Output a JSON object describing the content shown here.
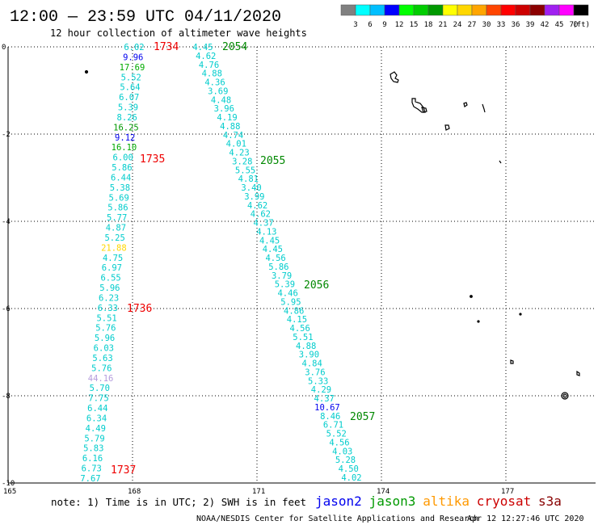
{
  "header": {
    "title": "12:00 — 23:59 UTC 04/11/2020",
    "subtitle": "12 hour collection of altimeter wave heights"
  },
  "colorbar": {
    "colors": [
      "#808080",
      "#00ffff",
      "#00bfff",
      "#0000ff",
      "#00ff00",
      "#00cd00",
      "#009900",
      "#ffff00",
      "#ffd700",
      "#ffa500",
      "#ff4500",
      "#ff0000",
      "#cd0000",
      "#8b0000",
      "#a020f0",
      "#ff00ff",
      "#000000"
    ],
    "labels": [
      "3",
      "6",
      "9",
      "12",
      "15",
      "18",
      "21",
      "24",
      "27",
      "30",
      "33",
      "36",
      "39",
      "42",
      "45",
      "70"
    ],
    "unit": "(ft)"
  },
  "axes": {
    "y_labels": [
      "0",
      "-2",
      "-4",
      "-6",
      "-8",
      "-10"
    ],
    "x_labels": [
      "165",
      "168",
      "171",
      "174",
      "177"
    ]
  },
  "track_left": {
    "values": [
      "6.02",
      "9.96",
      "17.69",
      "5.52",
      "5.64",
      "6.07",
      "5.39",
      "8.26",
      "16.25",
      "9.12",
      "16.10",
      "6.00",
      "5.86",
      "6.44",
      "5.38",
      "5.69",
      "5.86",
      "5.77",
      "4.87",
      "5.25",
      "21.88",
      "4.75",
      "6.97",
      "6.55",
      "5.96",
      "6.23",
      "6.33",
      "5.51",
      "5.76",
      "5.96",
      "6.03",
      "5.63",
      "5.76",
      "44.16",
      "5.70",
      "7.75",
      "6.44",
      "6.34",
      "4.49",
      "5.79",
      "5.83",
      "6.16",
      "6.73",
      "7.67"
    ],
    "colors": [
      "#00cccc",
      "#0000ee",
      "#00aa00",
      "#00cccc",
      "#00cccc",
      "#00cccc",
      "#00cccc",
      "#00cccc",
      "#009900",
      "#0000ee",
      "#00aa00",
      "#00cccc",
      "#00cccc",
      "#00cccc",
      "#00cccc",
      "#00cccc",
      "#00cccc",
      "#00cccc",
      "#00cccc",
      "#00cccc",
      "#ffd700",
      "#00cccc",
      "#00cccc",
      "#00cccc",
      "#00cccc",
      "#00cccc",
      "#00cccc",
      "#00cccc",
      "#00cccc",
      "#00cccc",
      "#00cccc",
      "#00cccc",
      "#00cccc",
      "#b49bdc",
      "#00cccc",
      "#00cccc",
      "#00cccc",
      "#00cccc",
      "#00cccc",
      "#00cccc",
      "#00cccc",
      "#00cccc",
      "#00cccc",
      "#00cccc"
    ]
  },
  "track_right": {
    "values": [
      "4.45",
      "4.62",
      "4.76",
      "4.88",
      "4.36",
      "3.69",
      "4.48",
      "3.96",
      "4.19",
      "4.88",
      "4.74",
      "4.01",
      "4.23",
      "3.28",
      "5.55",
      "4.81",
      "3.40",
      "3.99",
      "4.62",
      "4.62",
      "4.37",
      "4.13",
      "4.45",
      "4.45",
      "4.56",
      "5.86",
      "3.79",
      "5.39",
      "4.46",
      "5.95",
      "4.86",
      "4.15",
      "4.56",
      "5.51",
      "4.88",
      "3.90",
      "4.84",
      "3.76",
      "5.33",
      "4.29",
      "4.37",
      "10.67",
      "8.46",
      "6.71",
      "5.52",
      "4.56",
      "4.03",
      "5.28",
      "4.50",
      "4.02"
    ],
    "colors": [
      "#00cccc",
      "#00cccc",
      "#00cccc",
      "#00cccc",
      "#00cccc",
      "#00cccc",
      "#00cccc",
      "#00cccc",
      "#00cccc",
      "#00cccc",
      "#00cccc",
      "#00cccc",
      "#00cccc",
      "#00cccc",
      "#00cccc",
      "#00cccc",
      "#00cccc",
      "#00cccc",
      "#00cccc",
      "#00cccc",
      "#00cccc",
      "#00cccc",
      "#00cccc",
      "#00cccc",
      "#00cccc",
      "#00cccc",
      "#00cccc",
      "#00cccc",
      "#00cccc",
      "#00cccc",
      "#00cccc",
      "#00cccc",
      "#00cccc",
      "#00cccc",
      "#00cccc",
      "#00cccc",
      "#00cccc",
      "#00cccc",
      "#00cccc",
      "#00cccc",
      "#00cccc",
      "#0000ee",
      "#00cccc",
      "#00cccc",
      "#00cccc",
      "#00cccc",
      "#00cccc",
      "#00cccc",
      "#00cccc",
      "#00cccc"
    ]
  },
  "time_labels": [
    {
      "text": "1734",
      "color": "#ee0000"
    },
    {
      "text": "1735",
      "color": "#ee0000"
    },
    {
      "text": "1736",
      "color": "#ee0000"
    },
    {
      "text": "1737",
      "color": "#ee0000"
    },
    {
      "text": "2054",
      "color": "#008800"
    },
    {
      "text": "2055",
      "color": "#008800"
    },
    {
      "text": "2056",
      "color": "#008800"
    },
    {
      "text": "2057",
      "color": "#008800"
    }
  ],
  "footer": {
    "note": "note: 1) Time is in UTC; 2) SWH is in feet",
    "legend": [
      {
        "name": "jason2",
        "color": "#0000ee"
      },
      {
        "name": "jason3",
        "color": "#009900"
      },
      {
        "name": "altika",
        "color": "#ff9900"
      },
      {
        "name": "cryosat",
        "color": "#cc0000"
      },
      {
        "name": "s3a",
        "color": "#880000"
      }
    ],
    "credit": "NOAA/NESDIS Center for Satellite Applications and Research",
    "timestamp": "Apr 12 12:27:46 UTC 2020"
  }
}
